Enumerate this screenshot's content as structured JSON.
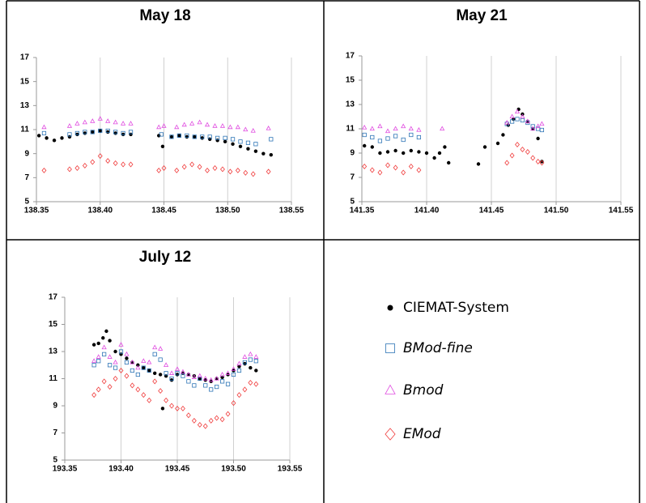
{
  "chart_data": [
    {
      "type": "scatter",
      "title": "May 18",
      "xlim": [
        138.35,
        138.55
      ],
      "ylim": [
        5,
        17
      ],
      "xticks": [
        138.35,
        {
          "value": 138.4,
          "label": "138.40"
        },
        138.45,
        {
          "value": 138.5,
          "label": "138.50"
        },
        138.55
      ],
      "yticks": [
        5,
        7,
        9,
        11,
        13,
        15,
        17
      ],
      "grid": true,
      "series": [
        {
          "name": "CIEMAT-System",
          "color": "#000000",
          "marker": "circle",
          "font_style": "normal",
          "x": [
            138.352,
            138.358,
            138.364,
            138.37,
            138.376,
            138.382,
            138.388,
            138.394,
            138.4,
            138.406,
            138.412,
            138.418,
            138.424,
            138.446,
            138.449,
            138.456,
            138.462,
            138.468,
            138.474,
            138.48,
            138.486,
            138.492,
            138.498,
            138.504,
            138.51,
            138.516,
            138.522,
            138.528,
            138.534
          ],
          "values": [
            10.5,
            10.3,
            10.1,
            10.3,
            10.4,
            10.6,
            10.7,
            10.8,
            10.9,
            10.8,
            10.7,
            10.6,
            10.6,
            10.5,
            9.6,
            10.4,
            10.5,
            10.4,
            10.4,
            10.3,
            10.2,
            10.1,
            10.0,
            9.8,
            9.6,
            9.4,
            9.2,
            9.0,
            8.9
          ]
        },
        {
          "name": "BMod-fine",
          "color": "#2e75b6",
          "marker": "square",
          "font_style": "italic",
          "x": [
            138.356,
            138.376,
            138.382,
            138.388,
            138.394,
            138.4,
            138.406,
            138.412,
            138.418,
            138.424,
            138.448,
            138.456,
            138.462,
            138.468,
            138.474,
            138.48,
            138.486,
            138.492,
            138.498,
            138.504,
            138.51,
            138.516,
            138.522,
            138.534
          ],
          "values": [
            10.7,
            10.6,
            10.7,
            10.8,
            10.8,
            10.9,
            10.9,
            10.8,
            10.7,
            10.8,
            10.6,
            10.4,
            10.5,
            10.5,
            10.4,
            10.4,
            10.4,
            10.3,
            10.3,
            10.2,
            10.0,
            9.9,
            9.8,
            10.2
          ]
        },
        {
          "name": "Bmod",
          "color": "#e04ce0",
          "marker": "triangle",
          "font_style": "italic",
          "x": [
            138.356,
            138.376,
            138.382,
            138.388,
            138.394,
            138.4,
            138.406,
            138.412,
            138.418,
            138.424,
            138.446,
            138.45,
            138.46,
            138.466,
            138.472,
            138.478,
            138.484,
            138.49,
            138.496,
            138.502,
            138.508,
            138.514,
            138.52,
            138.532
          ],
          "values": [
            11.2,
            11.3,
            11.5,
            11.6,
            11.7,
            11.9,
            11.7,
            11.6,
            11.5,
            11.5,
            11.2,
            11.3,
            11.2,
            11.4,
            11.5,
            11.6,
            11.4,
            11.3,
            11.3,
            11.2,
            11.2,
            11.0,
            10.9,
            11.1
          ]
        },
        {
          "name": "EMod",
          "color": "#f03c3c",
          "marker": "diamond",
          "font_style": "italic",
          "x": [
            138.356,
            138.376,
            138.382,
            138.388,
            138.394,
            138.4,
            138.406,
            138.412,
            138.418,
            138.424,
            138.446,
            138.45,
            138.46,
            138.466,
            138.472,
            138.478,
            138.484,
            138.49,
            138.496,
            138.502,
            138.508,
            138.514,
            138.52,
            138.532
          ],
          "values": [
            7.6,
            7.7,
            7.8,
            8.0,
            8.3,
            8.8,
            8.4,
            8.2,
            8.1,
            8.1,
            7.6,
            7.8,
            7.6,
            7.9,
            8.1,
            7.9,
            7.6,
            7.8,
            7.7,
            7.5,
            7.6,
            7.4,
            7.3,
            7.5
          ]
        }
      ]
    },
    {
      "type": "scatter",
      "title": "May 21",
      "xlim": [
        141.35,
        141.55
      ],
      "ylim": [
        5,
        17
      ],
      "xticks": [
        141.35,
        {
          "value": 141.4,
          "label": "141.40"
        },
        141.45,
        {
          "value": 141.5,
          "label": "141.50"
        },
        141.55
      ],
      "yticks": [
        5,
        7,
        9,
        11,
        13,
        15,
        17
      ],
      "grid": true,
      "series": [
        {
          "x": [
            141.352,
            141.358,
            141.364,
            141.37,
            141.376,
            141.382,
            141.388,
            141.394,
            141.4,
            141.406,
            141.41,
            141.414,
            141.417,
            141.44,
            141.445,
            141.455,
            141.459,
            141.463,
            141.467,
            141.471,
            141.474,
            141.478,
            141.482,
            141.486,
            141.489
          ],
          "values": [
            9.6,
            9.5,
            9.0,
            9.1,
            9.2,
            9.0,
            9.2,
            9.1,
            9.0,
            8.6,
            9.0,
            9.5,
            8.2,
            8.1,
            9.5,
            9.8,
            10.5,
            11.3,
            11.8,
            12.6,
            12.2,
            11.6,
            11.0,
            10.2,
            8.3
          ]
        },
        {
          "x": [
            141.352,
            141.358,
            141.364,
            141.37,
            141.376,
            141.382,
            141.388,
            141.394,
            141.462,
            141.466,
            141.47,
            141.474,
            141.478,
            141.482,
            141.486,
            141.489
          ],
          "values": [
            10.5,
            10.3,
            10.0,
            10.2,
            10.4,
            10.1,
            10.5,
            10.3,
            11.4,
            11.6,
            11.8,
            11.7,
            11.5,
            11.2,
            11.0,
            10.9
          ]
        },
        {
          "x": [
            141.352,
            141.358,
            141.364,
            141.37,
            141.376,
            141.382,
            141.388,
            141.394,
            141.412,
            141.462,
            141.466,
            141.47,
            141.474,
            141.478,
            141.482,
            141.486,
            141.489
          ],
          "values": [
            11.1,
            11.0,
            11.2,
            10.8,
            11.0,
            11.2,
            11.0,
            10.9,
            11.0,
            11.5,
            12.0,
            12.4,
            12.0,
            11.6,
            11.0,
            11.2,
            11.4
          ]
        },
        {
          "x": [
            141.352,
            141.358,
            141.364,
            141.37,
            141.376,
            141.382,
            141.388,
            141.394,
            141.462,
            141.466,
            141.47,
            141.474,
            141.478,
            141.482,
            141.486,
            141.489
          ],
          "values": [
            7.9,
            7.6,
            7.4,
            8.0,
            7.8,
            7.4,
            7.9,
            7.6,
            8.2,
            8.8,
            9.7,
            9.3,
            9.1,
            8.6,
            8.3,
            8.2
          ]
        }
      ]
    },
    {
      "type": "scatter",
      "title": "July 12",
      "xlim": [
        193.35,
        193.55
      ],
      "ylim": [
        5,
        17
      ],
      "xticks": [
        193.35,
        {
          "value": 193.4,
          "label": "193.40"
        },
        193.45,
        {
          "value": 193.5,
          "label": "193.50"
        },
        193.55
      ],
      "yticks": [
        5,
        7,
        9,
        11,
        13,
        15,
        17
      ],
      "grid": true,
      "series": [
        {
          "x": [
            193.376,
            193.38,
            193.384,
            193.387,
            193.39,
            193.395,
            193.4,
            193.405,
            193.41,
            193.415,
            193.42,
            193.425,
            193.43,
            193.435,
            193.437,
            193.44,
            193.445,
            193.45,
            193.455,
            193.46,
            193.465,
            193.47,
            193.475,
            193.48,
            193.485,
            193.49,
            193.495,
            193.5,
            193.505,
            193.51,
            193.515,
            193.52
          ],
          "values": [
            13.5,
            13.6,
            14.0,
            14.5,
            13.8,
            13.0,
            12.8,
            12.5,
            12.2,
            12.0,
            11.8,
            11.6,
            11.4,
            11.3,
            8.8,
            11.2,
            10.9,
            11.3,
            11.4,
            11.3,
            11.2,
            11.0,
            10.9,
            10.8,
            11.0,
            11.1,
            11.3,
            11.6,
            11.9,
            12.1,
            11.8,
            11.6
          ]
        },
        {
          "x": [
            193.376,
            193.38,
            193.385,
            193.39,
            193.395,
            193.4,
            193.405,
            193.41,
            193.415,
            193.42,
            193.425,
            193.43,
            193.435,
            193.44,
            193.445,
            193.45,
            193.455,
            193.46,
            193.465,
            193.47,
            193.475,
            193.48,
            193.485,
            193.49,
            193.495,
            193.5,
            193.505,
            193.51,
            193.515,
            193.52
          ],
          "values": [
            12.0,
            12.3,
            12.8,
            12.0,
            11.8,
            13.0,
            12.2,
            11.6,
            11.3,
            11.8,
            11.6,
            12.8,
            12.4,
            11.4,
            11.0,
            11.4,
            11.2,
            10.8,
            10.5,
            11.0,
            10.5,
            10.2,
            10.4,
            10.8,
            10.6,
            11.3,
            11.6,
            12.2,
            12.4,
            12.3
          ]
        },
        {
          "x": [
            193.376,
            193.38,
            193.385,
            193.39,
            193.395,
            193.4,
            193.405,
            193.41,
            193.415,
            193.42,
            193.425,
            193.43,
            193.435,
            193.44,
            193.445,
            193.45,
            193.455,
            193.46,
            193.465,
            193.47,
            193.475,
            193.48,
            193.485,
            193.49,
            193.495,
            193.5,
            193.505,
            193.51,
            193.515,
            193.52
          ],
          "values": [
            12.3,
            12.6,
            13.3,
            12.6,
            12.2,
            13.5,
            12.8,
            12.2,
            11.8,
            12.3,
            12.2,
            13.3,
            13.2,
            12.0,
            11.4,
            11.7,
            11.5,
            11.3,
            11.1,
            11.2,
            11.0,
            10.9,
            11.0,
            11.3,
            11.4,
            11.7,
            12.1,
            12.6,
            12.8,
            12.6
          ]
        },
        {
          "x": [
            193.376,
            193.38,
            193.385,
            193.39,
            193.395,
            193.4,
            193.405,
            193.41,
            193.415,
            193.42,
            193.425,
            193.43,
            193.435,
            193.44,
            193.445,
            193.45,
            193.455,
            193.46,
            193.465,
            193.47,
            193.475,
            193.48,
            193.485,
            193.49,
            193.495,
            193.5,
            193.505,
            193.51,
            193.515,
            193.52
          ],
          "values": [
            9.8,
            10.2,
            10.8,
            10.4,
            11.0,
            11.6,
            11.2,
            10.5,
            10.2,
            9.8,
            9.4,
            10.8,
            10.1,
            9.4,
            9.0,
            8.8,
            8.8,
            8.3,
            7.9,
            7.6,
            7.5,
            7.9,
            8.1,
            8.0,
            8.4,
            9.2,
            9.8,
            10.2,
            10.7,
            10.6
          ]
        }
      ]
    }
  ]
}
